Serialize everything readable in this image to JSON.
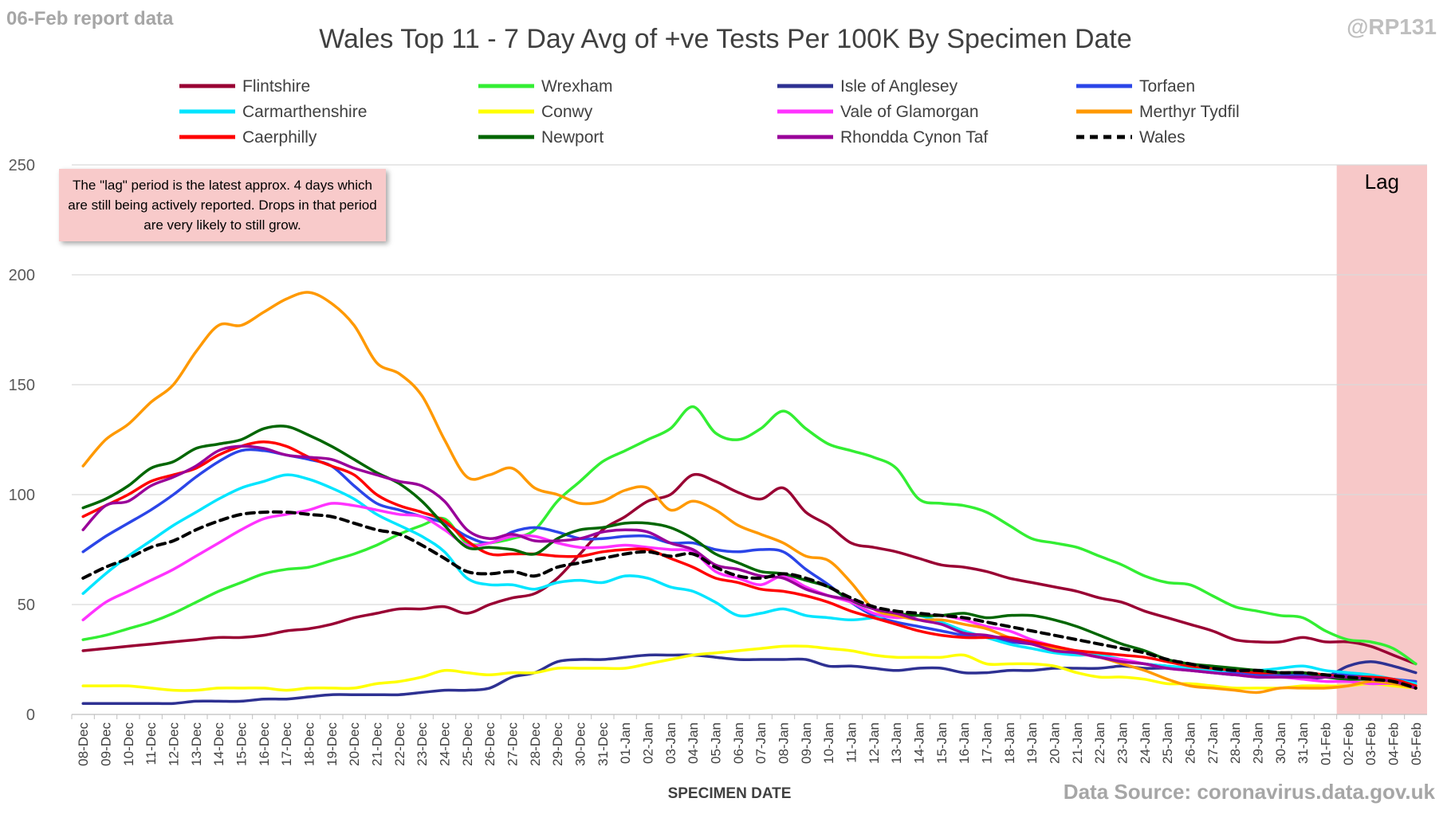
{
  "header": {
    "report_label": "06-Feb report data",
    "handle": "@RP131",
    "source": "Data Source: coronavirus.data.gov.uk"
  },
  "annotation": {
    "text": "The \"lag\" period is the latest approx. 4 days which are still being actively reported.  Drops in that period are very likely to still grow.",
    "lag_label": "Lag"
  },
  "chart_data": {
    "type": "line",
    "title": "Wales Top 11 - 7 Day Avg of +ve Tests Per 100K By Specimen Date",
    "xlabel": "SPECIMEN DATE",
    "ylabel": "",
    "ylim": [
      0,
      250
    ],
    "yticks": [
      0,
      50,
      100,
      150,
      200,
      250
    ],
    "grid": true,
    "legend_position": "top",
    "lag_start": "01-Feb",
    "lag_end": "05-Feb",
    "categories": [
      "08-Dec",
      "09-Dec",
      "10-Dec",
      "11-Dec",
      "12-Dec",
      "13-Dec",
      "14-Dec",
      "15-Dec",
      "16-Dec",
      "17-Dec",
      "18-Dec",
      "19-Dec",
      "20-Dec",
      "21-Dec",
      "22-Dec",
      "23-Dec",
      "24-Dec",
      "25-Dec",
      "26-Dec",
      "27-Dec",
      "28-Dec",
      "29-Dec",
      "30-Dec",
      "31-Dec",
      "01-Jan",
      "02-Jan",
      "03-Jan",
      "04-Jan",
      "05-Jan",
      "06-Jan",
      "07-Jan",
      "08-Jan",
      "09-Jan",
      "10-Jan",
      "11-Jan",
      "12-Jan",
      "13-Jan",
      "14-Jan",
      "15-Jan",
      "16-Jan",
      "17-Jan",
      "18-Jan",
      "19-Jan",
      "20-Jan",
      "21-Jan",
      "22-Jan",
      "23-Jan",
      "24-Jan",
      "25-Jan",
      "26-Jan",
      "27-Jan",
      "28-Jan",
      "29-Jan",
      "30-Jan",
      "31-Jan",
      "01-Feb",
      "02-Feb",
      "03-Feb",
      "04-Feb",
      "05-Feb"
    ],
    "series": [
      {
        "name": "Flintshire",
        "color": "#990033",
        "dashed": false,
        "values": [
          29,
          30,
          31,
          32,
          33,
          34,
          35,
          35,
          36,
          38,
          39,
          41,
          44,
          46,
          48,
          48,
          49,
          46,
          50,
          53,
          55,
          62,
          73,
          84,
          90,
          97,
          100,
          109,
          106,
          101,
          98,
          103,
          92,
          86,
          78,
          76,
          74,
          71,
          68,
          67,
          65,
          62,
          60,
          58,
          56,
          53,
          51,
          47,
          44,
          41,
          38,
          34,
          33,
          33,
          35,
          33,
          33,
          31,
          27,
          23
        ]
      },
      {
        "name": "Wrexham",
        "color": "#33ee33",
        "dashed": false,
        "values": [
          34,
          36,
          39,
          42,
          46,
          51,
          56,
          60,
          64,
          66,
          67,
          70,
          73,
          77,
          82,
          86,
          89,
          78,
          78,
          80,
          84,
          97,
          106,
          115,
          120,
          125,
          130,
          140,
          128,
          125,
          130,
          138,
          130,
          123,
          120,
          117,
          112,
          98,
          96,
          95,
          92,
          86,
          80,
          78,
          76,
          72,
          68,
          63,
          60,
          59,
          54,
          49,
          47,
          45,
          44,
          38,
          34,
          33,
          30,
          23
        ]
      },
      {
        "name": "Isle of Anglesey",
        "color": "#2e3192",
        "dashed": false,
        "values": [
          5,
          5,
          5,
          5,
          5,
          6,
          6,
          6,
          7,
          7,
          8,
          9,
          9,
          9,
          9,
          10,
          11,
          11,
          12,
          17,
          19,
          24,
          25,
          25,
          26,
          27,
          27,
          27,
          26,
          25,
          25,
          25,
          25,
          22,
          22,
          21,
          20,
          21,
          21,
          19,
          19,
          20,
          20,
          21,
          21,
          21,
          22,
          21,
          21,
          20,
          19,
          18,
          18,
          18,
          17,
          17,
          22,
          24,
          22,
          19
        ]
      },
      {
        "name": "Torfaen",
        "color": "#2b45e8",
        "dashed": false,
        "values": [
          74,
          81,
          87,
          93,
          100,
          108,
          115,
          120,
          120,
          118,
          116,
          113,
          104,
          96,
          93,
          90,
          87,
          81,
          78,
          83,
          85,
          83,
          80,
          80,
          81,
          81,
          78,
          78,
          75,
          74,
          75,
          74,
          66,
          59,
          51,
          45,
          42,
          40,
          38,
          36,
          35,
          33,
          32,
          30,
          28,
          26,
          25,
          23,
          22,
          21,
          20,
          19,
          18,
          18,
          18,
          18,
          18,
          17,
          16,
          15
        ]
      },
      {
        "name": "Carmarthenshire",
        "color": "#00e5ff",
        "dashed": false,
        "values": [
          55,
          64,
          72,
          79,
          86,
          92,
          98,
          103,
          106,
          109,
          107,
          103,
          98,
          91,
          86,
          81,
          74,
          62,
          59,
          59,
          57,
          60,
          61,
          60,
          63,
          62,
          58,
          56,
          51,
          45,
          46,
          48,
          45,
          44,
          43,
          44,
          45,
          45,
          42,
          38,
          35,
          32,
          30,
          28,
          27,
          27,
          25,
          23,
          22,
          21,
          20,
          20,
          20,
          21,
          22,
          20,
          19,
          18,
          16,
          14
        ]
      },
      {
        "name": "Conwy",
        "color": "#ffff00",
        "dashed": false,
        "values": [
          13,
          13,
          13,
          12,
          11,
          11,
          12,
          12,
          12,
          11,
          12,
          12,
          12,
          14,
          15,
          17,
          20,
          19,
          18,
          19,
          19,
          21,
          21,
          21,
          21,
          23,
          25,
          27,
          28,
          29,
          30,
          31,
          31,
          30,
          29,
          27,
          26,
          26,
          26,
          27,
          23,
          23,
          23,
          22,
          19,
          17,
          17,
          16,
          14,
          14,
          13,
          12,
          12,
          12,
          13,
          13,
          13,
          14,
          13,
          12
        ]
      },
      {
        "name": "Vale of Glamorgan",
        "color": "#ff33ff",
        "dashed": false,
        "values": [
          43,
          51,
          56,
          61,
          66,
          72,
          78,
          84,
          89,
          91,
          93,
          96,
          95,
          93,
          91,
          90,
          84,
          77,
          78,
          81,
          81,
          78,
          76,
          76,
          77,
          76,
          75,
          74,
          65,
          62,
          59,
          63,
          58,
          54,
          51,
          46,
          44,
          45,
          45,
          43,
          40,
          38,
          34,
          31,
          28,
          26,
          25,
          23,
          21,
          20,
          19,
          18,
          17,
          17,
          16,
          15,
          15,
          14,
          14,
          12
        ]
      },
      {
        "name": "Merthyr Tydfil",
        "color": "#ff9900",
        "dashed": false,
        "values": [
          113,
          125,
          132,
          142,
          150,
          165,
          177,
          177,
          183,
          189,
          192,
          187,
          177,
          160,
          155,
          145,
          125,
          108,
          109,
          112,
          103,
          100,
          96,
          97,
          102,
          103,
          93,
          97,
          93,
          86,
          82,
          78,
          72,
          70,
          60,
          48,
          45,
          43,
          43,
          41,
          39,
          35,
          32,
          30,
          28,
          26,
          23,
          20,
          16,
          13,
          12,
          11,
          10,
          12,
          12,
          12,
          13,
          15,
          14,
          12
        ]
      },
      {
        "name": "Caerphilly",
        "color": "#ff0000",
        "dashed": false,
        "values": [
          90,
          95,
          100,
          106,
          109,
          112,
          118,
          122,
          124,
          122,
          117,
          113,
          109,
          100,
          95,
          92,
          88,
          79,
          73,
          73,
          73,
          72,
          72,
          74,
          75,
          75,
          71,
          67,
          62,
          60,
          57,
          56,
          54,
          51,
          47,
          44,
          41,
          38,
          36,
          35,
          35,
          35,
          33,
          31,
          29,
          28,
          27,
          26,
          24,
          22,
          21,
          20,
          19,
          19,
          19,
          18,
          17,
          17,
          16,
          13
        ]
      },
      {
        "name": "Newport",
        "color": "#006600",
        "dashed": false,
        "values": [
          94,
          98,
          104,
          112,
          115,
          121,
          123,
          125,
          130,
          131,
          127,
          122,
          116,
          110,
          105,
          97,
          86,
          76,
          76,
          75,
          73,
          80,
          84,
          85,
          87,
          87,
          85,
          80,
          73,
          69,
          65,
          64,
          61,
          58,
          52,
          48,
          46,
          45,
          45,
          46,
          44,
          45,
          45,
          43,
          40,
          36,
          32,
          29,
          25,
          23,
          22,
          21,
          20,
          19,
          19,
          17,
          16,
          16,
          15,
          12
        ]
      },
      {
        "name": "Rhondda Cynon Taf",
        "color": "#990099",
        "dashed": false,
        "values": [
          84,
          95,
          97,
          104,
          108,
          113,
          120,
          122,
          121,
          118,
          117,
          116,
          112,
          109,
          106,
          104,
          97,
          84,
          80,
          82,
          79,
          79,
          80,
          83,
          84,
          83,
          78,
          75,
          68,
          66,
          63,
          62,
          57,
          54,
          52,
          48,
          46,
          43,
          41,
          37,
          36,
          34,
          32,
          29,
          28,
          26,
          24,
          23,
          21,
          20,
          19,
          18,
          17,
          17,
          17,
          17,
          17,
          16,
          15,
          12
        ]
      },
      {
        "name": "Wales",
        "color": "#000000",
        "dashed": true,
        "values": [
          62,
          67,
          71,
          76,
          79,
          84,
          88,
          91,
          92,
          92,
          91,
          90,
          87,
          84,
          82,
          77,
          71,
          65,
          64,
          65,
          63,
          67,
          69,
          71,
          73,
          74,
          72,
          73,
          67,
          63,
          62,
          64,
          62,
          58,
          53,
          49,
          47,
          46,
          45,
          44,
          42,
          40,
          38,
          36,
          34,
          32,
          30,
          28,
          25,
          23,
          21,
          20,
          20,
          19,
          19,
          18,
          17,
          16,
          15,
          12
        ]
      }
    ]
  }
}
